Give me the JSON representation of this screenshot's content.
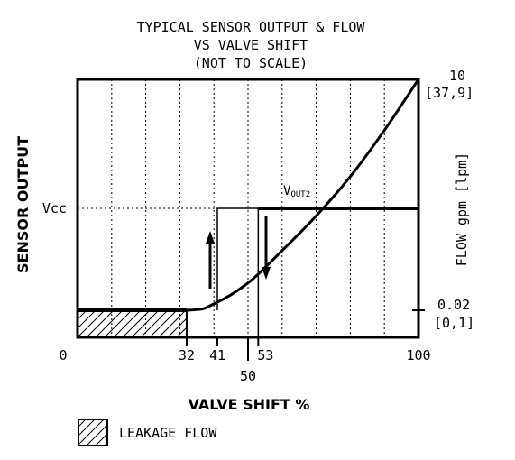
{
  "chart_data": {
    "type": "line",
    "title_lines": [
      "TYPICAL SENSOR OUTPUT & FLOW",
      "VS VALVE SHIFT",
      "(NOT TO SCALE)"
    ],
    "xlabel": "VALVE SHIFT %",
    "ylabel_left": "SENSOR OUTPUT",
    "ylabel_right": "FLOW gpm [lpm]",
    "xlim": [
      0,
      100
    ],
    "x_ticks": [
      {
        "value": 0,
        "label": "0"
      },
      {
        "value": 32,
        "label": "32"
      },
      {
        "value": 41,
        "label": "41"
      },
      {
        "value": 50,
        "label": "50"
      },
      {
        "value": 53,
        "label": "53"
      },
      {
        "value": 100,
        "label": "100"
      }
    ],
    "left_ticks": [
      {
        "value": "Vcc",
        "label": "Vcc"
      }
    ],
    "right_ticks": [
      {
        "flow": 10,
        "label": "10",
        "sublabel": "[37,9]"
      },
      {
        "flow": 0.02,
        "label": "0.02",
        "sublabel": "[0,1]"
      }
    ],
    "series": [
      {
        "name": "VOUT2",
        "name_main": "V",
        "name_sub": "OUT2",
        "kind": "sensor-output",
        "low_value": "0",
        "high_value": "Vcc",
        "rising_switch_point": 41,
        "falling_switch_point": 53
      },
      {
        "kind": "flow",
        "x": [
          0,
          32,
          40,
          50,
          60,
          70,
          80,
          90,
          100
        ],
        "y": [
          0.02,
          0.02,
          0.3,
          1.2,
          2.6,
          4.1,
          5.8,
          7.8,
          10
        ]
      }
    ],
    "legend": [
      {
        "label": "LEAKAGE FLOW",
        "pattern": "hatched",
        "x_range": [
          0,
          32
        ],
        "flow_value": 0.02
      }
    ],
    "grid": true,
    "line_color": "#000000",
    "background": "#ffffff"
  }
}
